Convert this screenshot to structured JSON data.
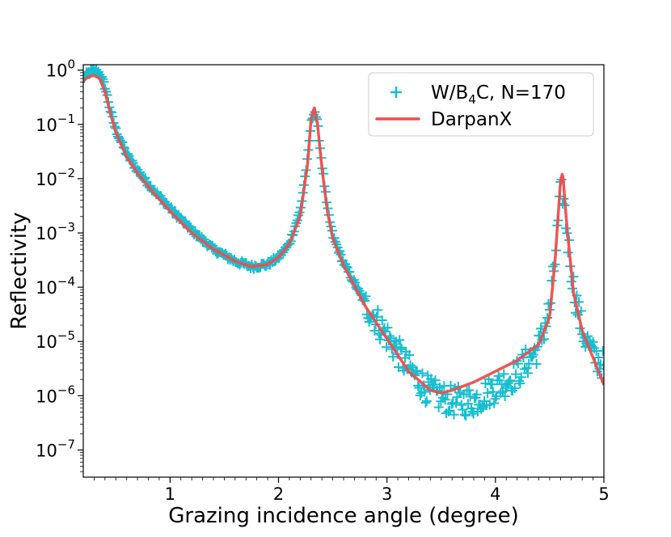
{
  "chart_data": {
    "type": "line",
    "title": "",
    "xlabel": "Grazing incidence angle (degree)",
    "ylabel": "Reflectivity",
    "xscale": "linear",
    "yscale": "log",
    "xlim": [
      0.2,
      5.0
    ],
    "ylim_exponent": [
      -7.5,
      0.1
    ],
    "x_ticks": [
      {
        "value": 1,
        "label": "1"
      },
      {
        "value": 2,
        "label": "2"
      },
      {
        "value": 3,
        "label": "3"
      },
      {
        "value": 4,
        "label": "4"
      },
      {
        "value": 5,
        "label": "5"
      }
    ],
    "y_ticks": [
      {
        "exp": 0,
        "base": "10",
        "sup": "0"
      },
      {
        "exp": -1,
        "base": "10",
        "sup": "−1"
      },
      {
        "exp": -2,
        "base": "10",
        "sup": "−2"
      },
      {
        "exp": -3,
        "base": "10",
        "sup": "−3"
      },
      {
        "exp": -4,
        "base": "10",
        "sup": "−4"
      },
      {
        "exp": -5,
        "base": "10",
        "sup": "−5"
      },
      {
        "exp": -6,
        "base": "10",
        "sup": "−6"
      },
      {
        "exp": -7,
        "base": "10",
        "sup": "−7"
      }
    ],
    "grid": false,
    "legend_position": "top-right",
    "series": [
      {
        "name": "W/B4C, N=170",
        "label_parts": {
          "a": "W/B",
          "sub": "4",
          "b": "C, N=170"
        },
        "kind": "scatter",
        "marker": "+",
        "color": "#17BECF",
        "anchors_log10": [
          [
            0.2,
            -0.15
          ],
          [
            0.25,
            -0.05
          ],
          [
            0.3,
            0.0
          ],
          [
            0.35,
            -0.05
          ],
          [
            0.4,
            -0.3
          ],
          [
            0.45,
            -0.75
          ],
          [
            0.5,
            -1.1
          ],
          [
            0.6,
            -1.55
          ],
          [
            0.7,
            -1.85
          ],
          [
            0.8,
            -2.1
          ],
          [
            1.0,
            -2.55
          ],
          [
            1.2,
            -2.95
          ],
          [
            1.4,
            -3.3
          ],
          [
            1.6,
            -3.52
          ],
          [
            1.75,
            -3.62
          ],
          [
            1.9,
            -3.58
          ],
          [
            2.0,
            -3.45
          ],
          [
            2.1,
            -3.2
          ],
          [
            2.2,
            -2.6
          ],
          [
            2.27,
            -1.6
          ],
          [
            2.3,
            -1.0
          ],
          [
            2.33,
            -0.72
          ],
          [
            2.36,
            -1.0
          ],
          [
            2.4,
            -1.7
          ],
          [
            2.45,
            -2.55
          ],
          [
            2.5,
            -3.05
          ],
          [
            2.6,
            -3.55
          ],
          [
            2.8,
            -4.3
          ],
          [
            3.0,
            -4.9
          ],
          [
            3.2,
            -5.5
          ],
          [
            3.4,
            -5.95
          ],
          [
            3.6,
            -6.1
          ],
          [
            3.8,
            -6.1
          ],
          [
            4.0,
            -5.85
          ],
          [
            4.2,
            -5.6
          ],
          [
            4.4,
            -5.1
          ],
          [
            4.5,
            -4.4
          ],
          [
            4.55,
            -3.5
          ],
          [
            4.6,
            -2.3
          ],
          [
            4.62,
            -2.25
          ],
          [
            4.66,
            -3.0
          ],
          [
            4.72,
            -4.0
          ],
          [
            4.8,
            -4.8
          ],
          [
            4.9,
            -5.25
          ],
          [
            5.0,
            -5.45
          ]
        ]
      },
      {
        "name": "DarpanX",
        "kind": "line",
        "color": "#F24C4C",
        "anchors_log10": [
          [
            0.2,
            -0.2
          ],
          [
            0.25,
            -0.12
          ],
          [
            0.3,
            -0.1
          ],
          [
            0.35,
            -0.15
          ],
          [
            0.4,
            -0.4
          ],
          [
            0.45,
            -0.8
          ],
          [
            0.5,
            -1.15
          ],
          [
            0.6,
            -1.6
          ],
          [
            0.7,
            -1.9
          ],
          [
            0.8,
            -2.15
          ],
          [
            1.0,
            -2.6
          ],
          [
            1.2,
            -3.0
          ],
          [
            1.4,
            -3.3
          ],
          [
            1.6,
            -3.52
          ],
          [
            1.75,
            -3.62
          ],
          [
            1.9,
            -3.58
          ],
          [
            2.0,
            -3.45
          ],
          [
            2.1,
            -3.2
          ],
          [
            2.2,
            -2.7
          ],
          [
            2.27,
            -1.7
          ],
          [
            2.3,
            -0.9
          ],
          [
            2.33,
            -0.68
          ],
          [
            2.36,
            -1.0
          ],
          [
            2.4,
            -1.8
          ],
          [
            2.45,
            -2.6
          ],
          [
            2.5,
            -3.1
          ],
          [
            2.6,
            -3.6
          ],
          [
            2.8,
            -4.35
          ],
          [
            3.0,
            -4.95
          ],
          [
            3.2,
            -5.55
          ],
          [
            3.4,
            -5.9
          ],
          [
            3.5,
            -5.95
          ],
          [
            3.6,
            -5.9
          ],
          [
            3.8,
            -5.75
          ],
          [
            4.0,
            -5.55
          ],
          [
            4.2,
            -5.35
          ],
          [
            4.4,
            -5.05
          ],
          [
            4.5,
            -4.55
          ],
          [
            4.55,
            -3.5
          ],
          [
            4.6,
            -2.05
          ],
          [
            4.62,
            -1.88
          ],
          [
            4.66,
            -2.9
          ],
          [
            4.72,
            -4.1
          ],
          [
            4.8,
            -4.8
          ],
          [
            4.9,
            -5.3
          ],
          [
            5.0,
            -5.8
          ]
        ]
      }
    ]
  }
}
